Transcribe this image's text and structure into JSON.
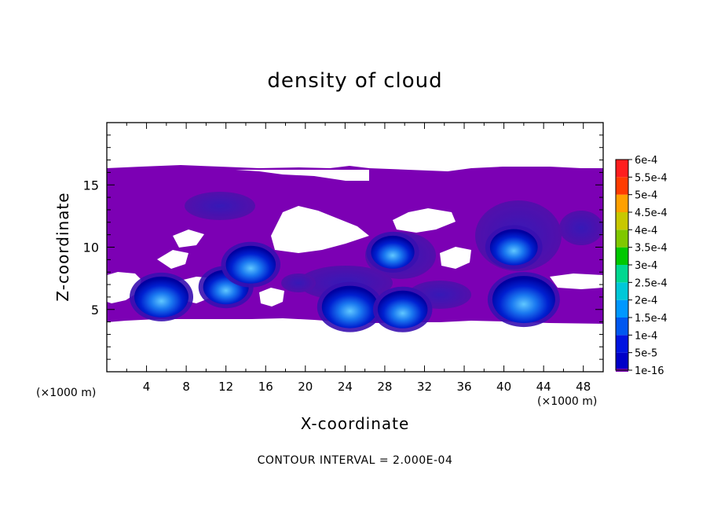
{
  "chart_data": {
    "type": "heatmap",
    "title": "density of cloud",
    "xlabel": "X-coordinate",
    "ylabel": "Z-coordinate",
    "x_unit_label": "(×1000 m)",
    "x_unit_label_right": "(×1000 m)",
    "note": "CONTOUR INTERVAL = 2.000E-04",
    "xlim": [
      0,
      50
    ],
    "ylim": [
      0,
      20
    ],
    "x_ticks": [
      4,
      8,
      12,
      16,
      20,
      24,
      28,
      32,
      36,
      40,
      44,
      48
    ],
    "y_ticks": [
      5,
      10,
      15
    ],
    "grid": false,
    "legend": {
      "placement": "right",
      "levels": [
        "1e-16",
        "5e-5",
        "1e-4",
        "1.5e-4",
        "2e-4",
        "2.5e-4",
        "3e-4",
        "3.5e-4",
        "4e-4",
        "4.5e-4",
        "5e-4",
        "5.5e-4",
        "6e-4"
      ],
      "colors": [
        "#7c00b4",
        "#0000c8",
        "#0014e0",
        "#0058f0",
        "#0098ff",
        "#00c8d8",
        "#00d890",
        "#00c800",
        "#80c800",
        "#c8c800",
        "#ffa000",
        "#ff3c00",
        "#ff1e1e",
        "#ff9696"
      ]
    },
    "cloud_cores": [
      {
        "x": 5.5,
        "z": 6.0,
        "value": 0.00012
      },
      {
        "x": 12.0,
        "z": 6.8,
        "value": 8e-05
      },
      {
        "x": 14.5,
        "z": 8.6,
        "value": 0.0001
      },
      {
        "x": 24.5,
        "z": 5.2,
        "value": 0.00013
      },
      {
        "x": 29.8,
        "z": 5.0,
        "value": 0.0001
      },
      {
        "x": 42.0,
        "z": 5.8,
        "value": 0.00016
      },
      {
        "x": 41.0,
        "z": 10.0,
        "value": 9e-05
      },
      {
        "x": 28.8,
        "z": 9.6,
        "value": 7e-05
      }
    ]
  }
}
